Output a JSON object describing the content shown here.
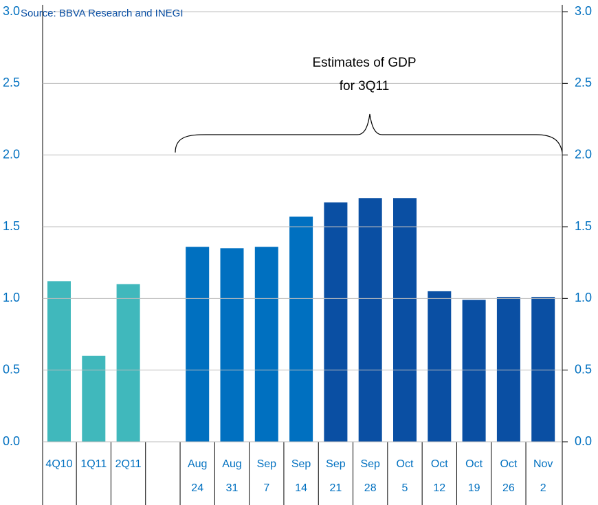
{
  "chart_data": {
    "type": "bar",
    "source": "Source: BBVA Research and INEGI",
    "annotation": [
      "Estimates of GDP",
      "for 3Q11"
    ],
    "categories": [
      "4Q10",
      "1Q11",
      "2Q11",
      null,
      "Aug",
      "Aug",
      "Sep",
      "Sep",
      "Sep",
      "Sep",
      "Oct",
      "Oct",
      "Oct",
      "Oct",
      "Nov"
    ],
    "categories_2": [
      null,
      null,
      null,
      null,
      "24",
      "31",
      "7",
      "14",
      "21",
      "28",
      "5",
      "12",
      "19",
      "26",
      "2"
    ],
    "values": [
      1.12,
      0.6,
      1.1,
      null,
      1.36,
      1.35,
      1.36,
      1.57,
      1.67,
      1.7,
      1.7,
      1.05,
      0.99,
      1.01,
      1.01
    ],
    "colors": [
      "#40b8bc",
      "#40b8bc",
      "#40b8bc",
      null,
      "#0070c0",
      "#0070c0",
      "#0070c0",
      "#0070c0",
      "#0a4fa3",
      "#0a4fa3",
      "#0a4fa3",
      "#0a4fa3",
      "#0a4fa3",
      "#0a4fa3",
      "#0a4fa3"
    ],
    "ylim": [
      0,
      3
    ],
    "yticks": [
      {
        "value": 0,
        "label": "0.0"
      },
      0.5,
      {
        "value": 1,
        "label": "1.0"
      },
      1.5,
      {
        "value": 2,
        "label": "2.0"
      },
      2.5,
      {
        "value": 3,
        "label": "3.0"
      }
    ],
    "y2lim": [
      0,
      3
    ],
    "y2ticks": [
      {
        "value": 0,
        "label": "0.0"
      },
      0.5,
      {
        "value": 1,
        "label": "1.0"
      },
      1.5,
      {
        "value": 2,
        "label": "2.0"
      },
      2.5,
      {
        "value": 3,
        "label": "3.0"
      }
    ],
    "grid": true
  }
}
